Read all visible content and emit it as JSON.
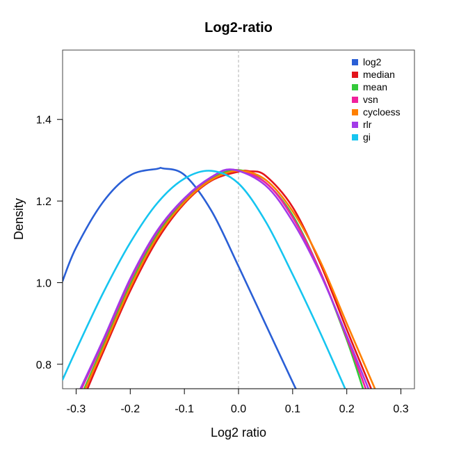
{
  "chart_data": {
    "type": "line",
    "title": "Log2-ratio",
    "xlabel": "Log2 ratio",
    "ylabel": "Density",
    "xlim": [
      -0.325,
      0.325
    ],
    "ylim": [
      0.74,
      1.57
    ],
    "x_ticks": [
      -0.3,
      -0.2,
      -0.1,
      0.0,
      0.1,
      0.2,
      0.3
    ],
    "x_tick_labels": [
      "-0.3",
      "-0.2",
      "-0.1",
      "0.0",
      "0.1",
      "0.2",
      "0.3"
    ],
    "y_ticks": [
      0.8,
      1.0,
      1.2,
      1.4
    ],
    "y_tick_labels": [
      "0.8",
      "1.0",
      "1.2",
      "1.4"
    ],
    "reference_line": {
      "x": 0.0,
      "style": "dashed",
      "color": "#bdbdbd"
    },
    "grid": false,
    "legend_position": "top-right",
    "series": [
      {
        "name": "log2",
        "color": "#2a5fd6",
        "x": [
          -0.325,
          -0.3,
          -0.25,
          -0.2,
          -0.15,
          -0.14,
          -0.1,
          -0.05,
          0.0,
          0.05,
          0.1,
          0.106
        ],
        "y": [
          1.004,
          1.086,
          1.198,
          1.263,
          1.279,
          1.28,
          1.264,
          1.176,
          1.04,
          0.898,
          0.756,
          0.74
        ]
      },
      {
        "name": "median",
        "color": "#e3141c",
        "x": [
          -0.279,
          -0.25,
          -0.2,
          -0.15,
          -0.1,
          -0.05,
          0.0,
          0.02,
          0.05,
          0.1,
          0.15,
          0.2,
          0.245
        ],
        "y": [
          0.74,
          0.83,
          0.98,
          1.105,
          1.194,
          1.25,
          1.272,
          1.273,
          1.262,
          1.185,
          1.05,
          0.885,
          0.74
        ]
      },
      {
        "name": "mean",
        "color": "#33c93a",
        "x": [
          -0.285,
          -0.25,
          -0.2,
          -0.15,
          -0.1,
          -0.05,
          0.0,
          0.05,
          0.1,
          0.15,
          0.2,
          0.23
        ],
        "y": [
          0.74,
          0.845,
          0.995,
          1.118,
          1.2,
          1.255,
          1.276,
          1.245,
          1.165,
          1.03,
          0.86,
          0.74
        ]
      },
      {
        "name": "vsn",
        "color": "#f0219c",
        "x": [
          -0.29,
          -0.25,
          -0.2,
          -0.15,
          -0.1,
          -0.05,
          -0.01,
          0.05,
          0.1,
          0.15,
          0.2,
          0.235
        ],
        "y": [
          0.74,
          0.855,
          1.005,
          1.125,
          1.205,
          1.258,
          1.277,
          1.245,
          1.16,
          1.03,
          0.865,
          0.74
        ]
      },
      {
        "name": "cycloess",
        "color": "#ff8000",
        "x": [
          -0.283,
          -0.25,
          -0.2,
          -0.15,
          -0.1,
          -0.05,
          0.0,
          0.05,
          0.1,
          0.15,
          0.2,
          0.252
        ],
        "y": [
          0.74,
          0.838,
          0.988,
          1.112,
          1.197,
          1.252,
          1.274,
          1.252,
          1.175,
          1.055,
          0.9,
          0.74
        ]
      },
      {
        "name": "rlr",
        "color": "#a23be8",
        "x": [
          -0.292,
          -0.25,
          -0.2,
          -0.15,
          -0.1,
          -0.05,
          -0.01,
          0.05,
          0.1,
          0.15,
          0.2,
          0.24
        ],
        "y": [
          0.74,
          0.86,
          1.01,
          1.128,
          1.207,
          1.259,
          1.277,
          1.238,
          1.15,
          1.025,
          0.87,
          0.74
        ]
      },
      {
        "name": "gi",
        "color": "#16c5f0",
        "x": [
          -0.325,
          -0.3,
          -0.25,
          -0.2,
          -0.15,
          -0.1,
          -0.05,
          0.0,
          0.05,
          0.1,
          0.15,
          0.197
        ],
        "y": [
          0.762,
          0.835,
          0.975,
          1.098,
          1.195,
          1.255,
          1.274,
          1.243,
          1.15,
          1.02,
          0.88,
          0.74
        ]
      }
    ]
  }
}
